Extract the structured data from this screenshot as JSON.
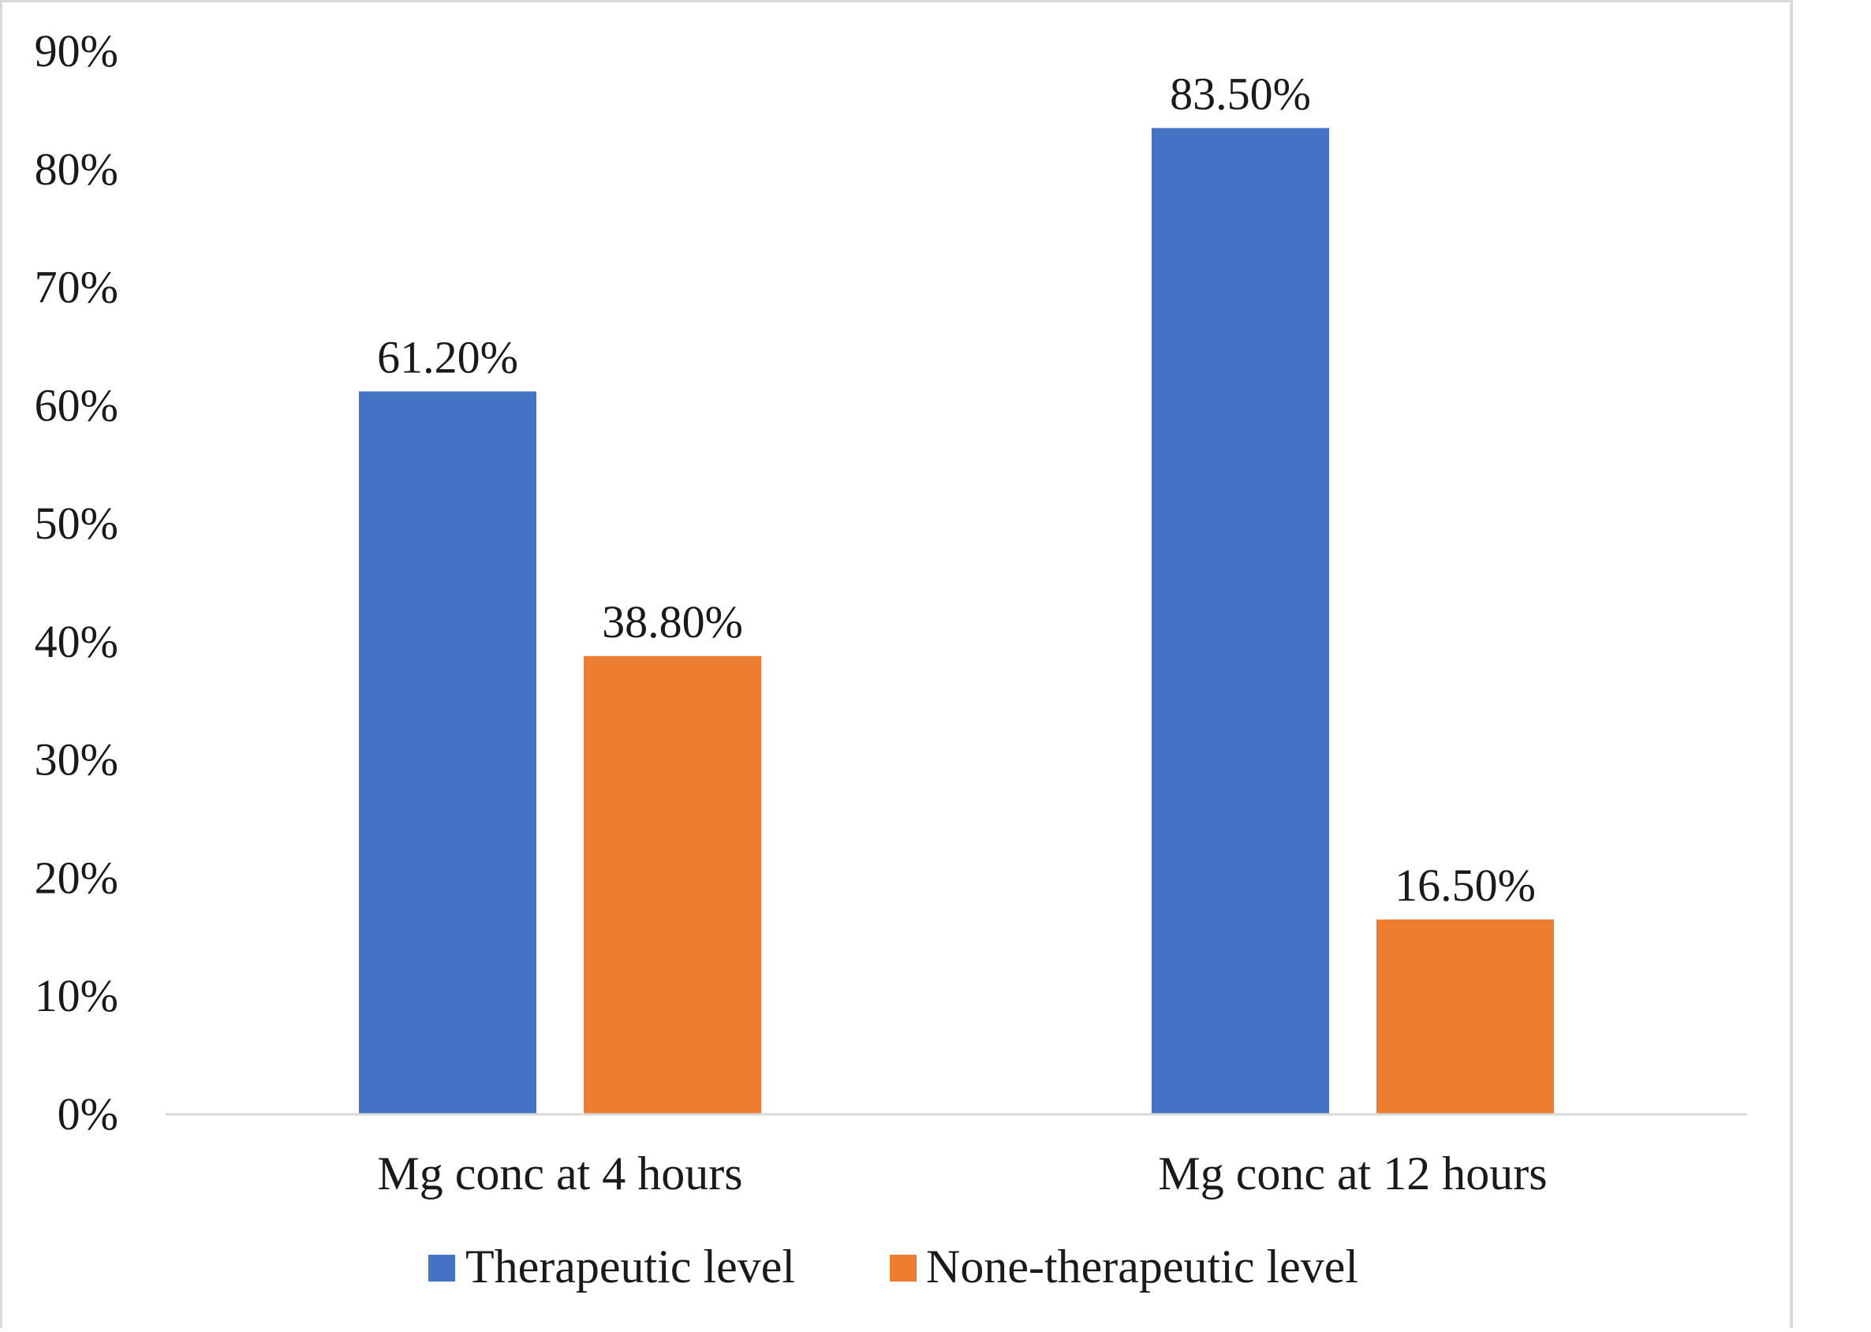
{
  "chart_data": {
    "type": "bar",
    "categories": [
      "Mg conc at 4 hours",
      "Mg conc at 12 hours"
    ],
    "series": [
      {
        "name": "Therapeutic level",
        "values": [
          61.2,
          83.5
        ],
        "labels": [
          "61.20%",
          "83.50%"
        ],
        "color": "#4472C4"
      },
      {
        "name": "None-therapeutic level",
        "values": [
          38.8,
          16.5
        ],
        "labels": [
          "38.80%",
          "16.50%"
        ],
        "color": "#ED7D31"
      }
    ],
    "ylim": [
      0,
      90
    ],
    "yticks": [
      0,
      10,
      20,
      30,
      40,
      50,
      60,
      70,
      80,
      90
    ],
    "ytick_labels": [
      "0%",
      "10%",
      "20%",
      "30%",
      "40%",
      "50%",
      "60%",
      "70%",
      "80%",
      "90%"
    ],
    "grid": false,
    "legend_position": "bottom",
    "title": "",
    "xlabel": "",
    "ylabel": ""
  }
}
